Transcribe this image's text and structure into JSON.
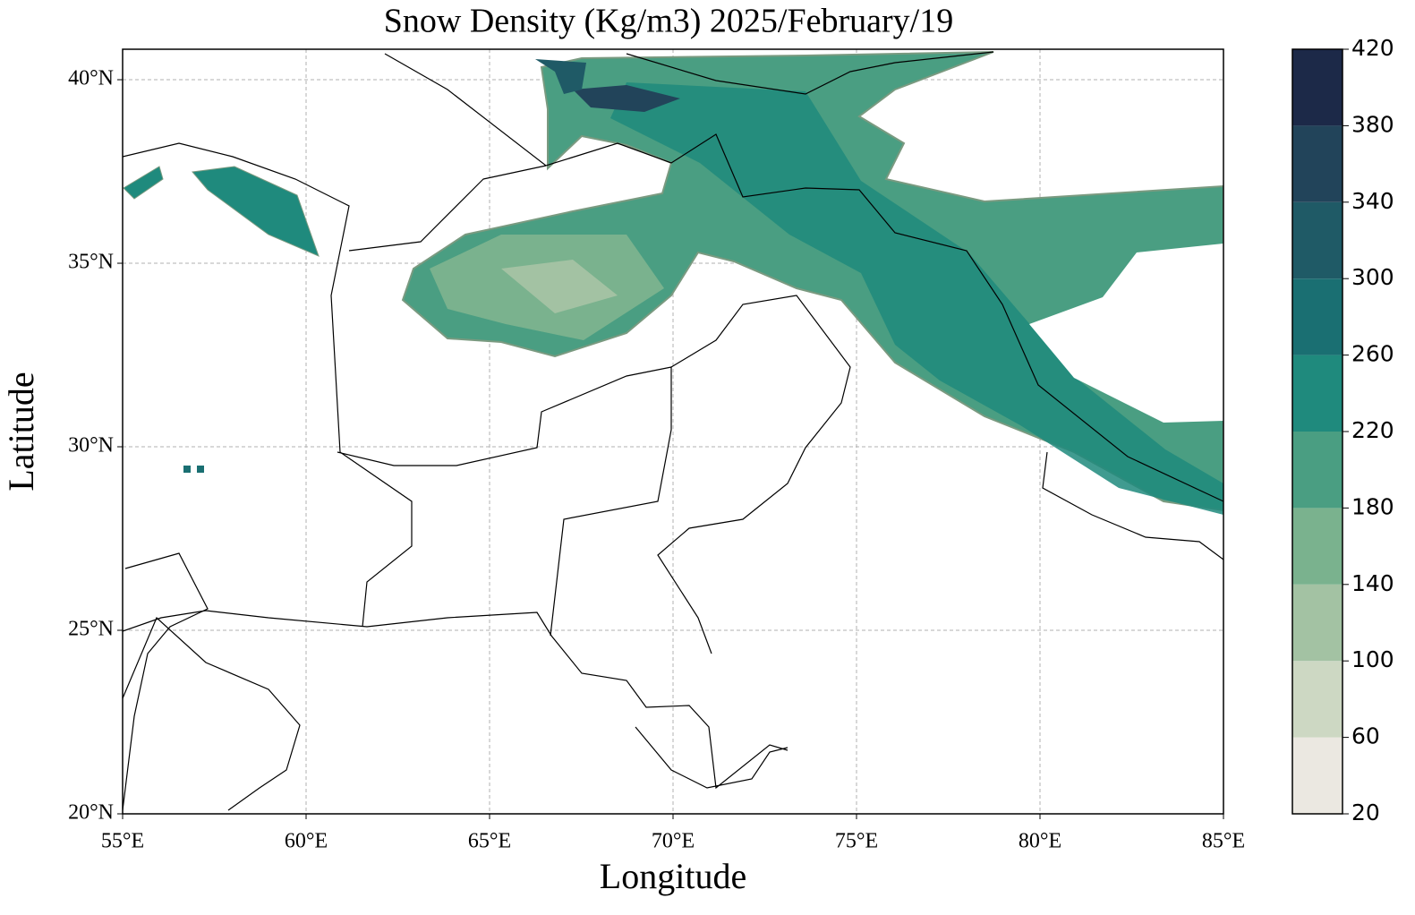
{
  "map": {
    "title": "Snow Density (Kg/m3) 2025/February/19",
    "x_label": "Longitude",
    "y_label": "Latitude",
    "xlim": [
      55,
      85
    ],
    "ylim": [
      20,
      40.83
    ],
    "xticks": [
      {
        "value": 55,
        "label": "55°E"
      },
      {
        "value": 60,
        "label": "60°E"
      },
      {
        "value": 65,
        "label": "65°E"
      },
      {
        "value": 70,
        "label": "70°E"
      },
      {
        "value": 75,
        "label": "75°E"
      },
      {
        "value": 80,
        "label": "80°E"
      },
      {
        "value": 85,
        "label": "85°E"
      }
    ],
    "yticks": [
      {
        "value": 20,
        "label": "20°N"
      },
      {
        "value": 25,
        "label": "25°N"
      },
      {
        "value": 30,
        "label": "30°N"
      },
      {
        "value": 35,
        "label": "35°N"
      },
      {
        "value": 40,
        "label": "40°N"
      }
    ],
    "grid": true,
    "colorbar": {
      "levels": [
        20,
        60,
        100,
        140,
        180,
        220,
        260,
        300,
        340,
        380,
        420
      ],
      "colors": [
        "#ebe8e1",
        "#cdd8c3",
        "#a3c2a3",
        "#7ab28e",
        "#4a9e82",
        "#1f8a7d",
        "#1a6f72",
        "#1f5a66",
        "#22445a",
        "#1c2948"
      ]
    }
  }
}
